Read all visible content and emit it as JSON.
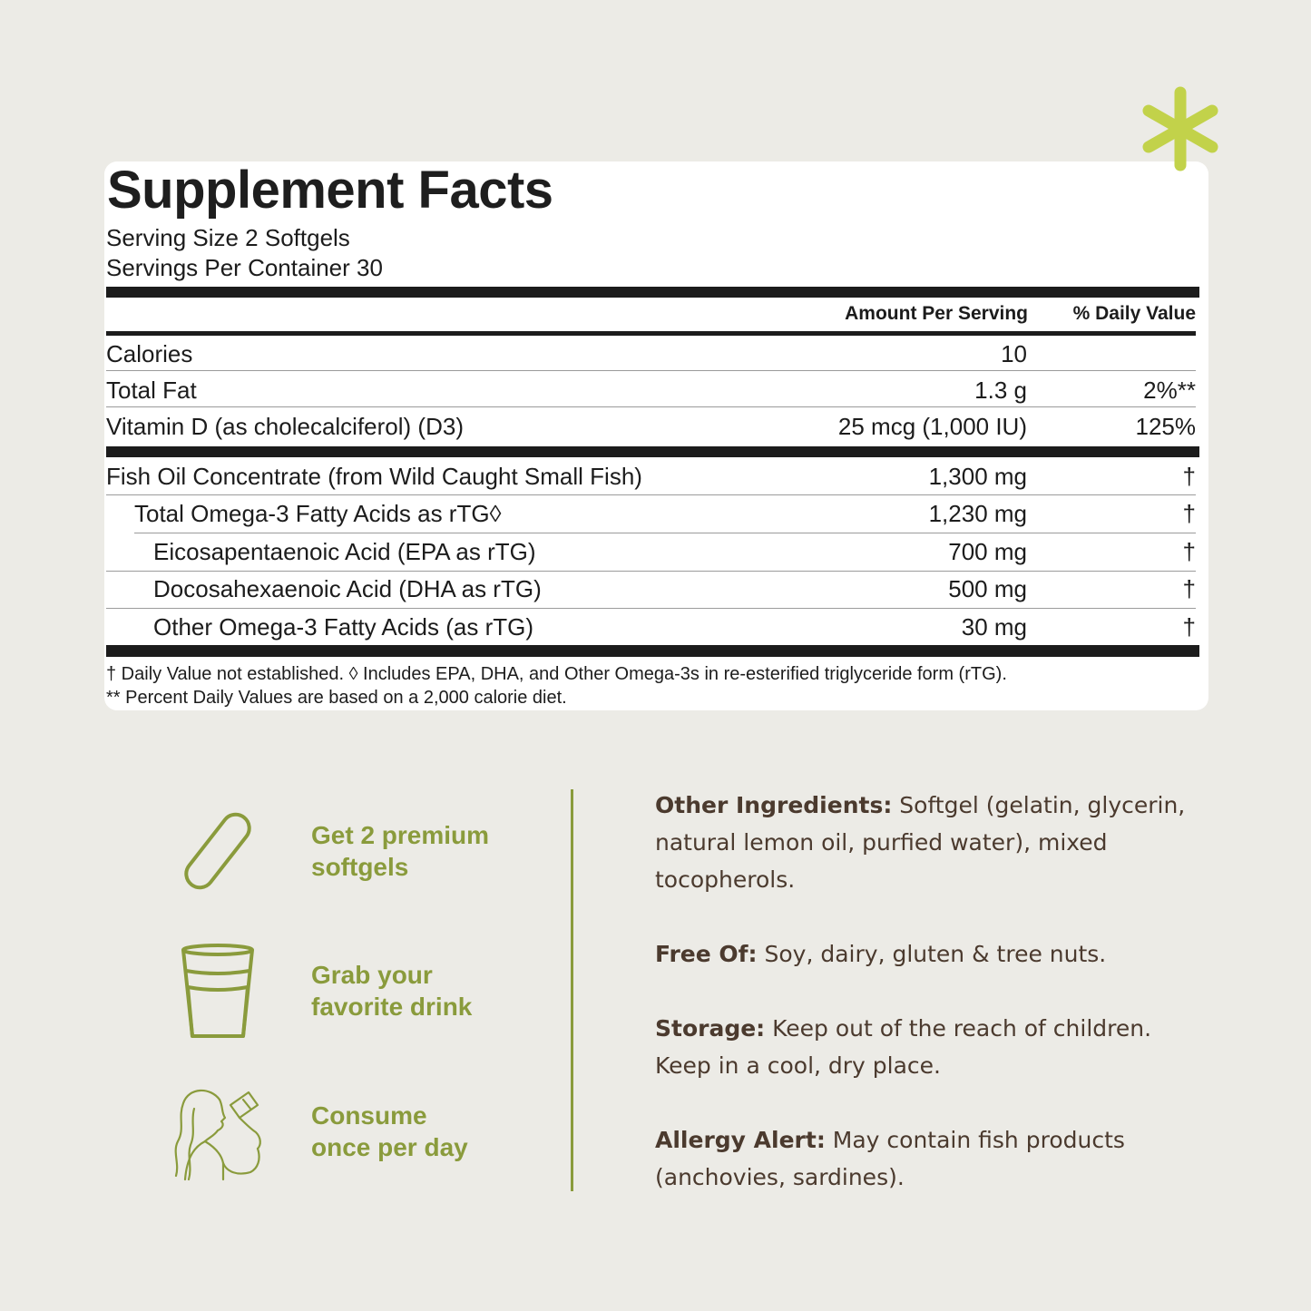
{
  "facts": {
    "title": "Supplement Facts",
    "serving_size": "Serving Size 2 Softgels",
    "servings_per_container": "Servings Per Container 30",
    "col_amount": "Amount Per Serving",
    "col_dv": "% Daily Value",
    "rows_a": [
      {
        "label": "Calories",
        "amount": "10",
        "dv": ""
      },
      {
        "label": "Total Fat",
        "amount": "1.3 g",
        "dv": "2%**"
      },
      {
        "label": "Vitamin D (as cholecalciferol) (D3)",
        "amount": "25 mcg (1,000 IU)",
        "dv": "125%"
      }
    ],
    "rows_b": [
      {
        "label": "Fish Oil Concentrate (from Wild Caught Small Fish)",
        "amount": "1,300 mg",
        "dv": "†"
      },
      {
        "label": "Total Omega-3 Fatty Acids as rTG◊",
        "amount": "1,230 mg",
        "dv": "†"
      },
      {
        "label": "Eicosapentaenoic Acid (EPA as rTG)",
        "amount": "700 mg",
        "dv": "†"
      },
      {
        "label": "Docosahexaenoic Acid (DHA as rTG)",
        "amount": "500 mg",
        "dv": "†"
      },
      {
        "label": "Other Omega-3 Fatty Acids (as rTG)",
        "amount": "30 mg",
        "dv": "†"
      }
    ],
    "footnote_1": "† Daily Value not established. ◊ Includes EPA, DHA, and Other Omega-3s in re-esterified triglyceride form (rTG).",
    "footnote_2": "** Percent Daily Values are based on a 2,000 calorie diet."
  },
  "steps": [
    {
      "line1": "Get 2 premium",
      "line2": "softgels",
      "icon": "softgel-icon"
    },
    {
      "line1": "Grab your",
      "line2": "favorite drink",
      "icon": "glass-icon"
    },
    {
      "line1": "Consume",
      "line2": "once per day",
      "icon": "woman-drinking-icon"
    }
  ],
  "info": {
    "other_ingredients_label": "Other Ingredients:",
    "other_ingredients_text": " Softgel (gelatin, glycerin, natural lemon oil, purfied water), mixed tocopherols.",
    "free_of_label": "Free Of:",
    "free_of_text": " Soy, dairy, gluten & tree nuts.",
    "storage_label": "Storage:",
    "storage_text": " Keep out of the reach of children. Keep in a cool, dry place.",
    "allergy_label": "Allergy Alert:",
    "allergy_text": " May contain fish products (anchovies, sardines)."
  },
  "colors": {
    "background": "#ecebe6",
    "accent_green": "#8a9b3c",
    "asterisk_lime": "#c2d24a",
    "info_text_brown": "#4b3a2e"
  }
}
